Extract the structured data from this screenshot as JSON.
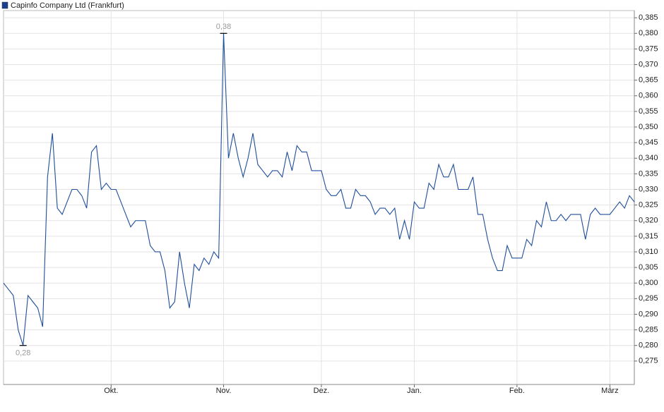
{
  "chart_data": {
    "type": "line",
    "series": [
      {
        "name": "Capinfo Company Ltd (Frankfurt)",
        "color": "#1f4e9a",
        "values": [
          0.3,
          0.298,
          0.296,
          0.285,
          0.28,
          0.296,
          0.294,
          0.292,
          0.286,
          0.334,
          0.348,
          0.324,
          0.322,
          0.326,
          0.33,
          0.33,
          0.328,
          0.324,
          0.342,
          0.344,
          0.33,
          0.332,
          0.33,
          0.33,
          0.326,
          0.322,
          0.318,
          0.32,
          0.32,
          0.32,
          0.312,
          0.31,
          0.31,
          0.304,
          0.292,
          0.294,
          0.31,
          0.3,
          0.292,
          0.306,
          0.304,
          0.308,
          0.306,
          0.31,
          0.308,
          0.38,
          0.34,
          0.348,
          0.34,
          0.334,
          0.34,
          0.348,
          0.338,
          0.336,
          0.334,
          0.336,
          0.336,
          0.334,
          0.342,
          0.336,
          0.344,
          0.342,
          0.342,
          0.336,
          0.336,
          0.336,
          0.33,
          0.328,
          0.328,
          0.33,
          0.324,
          0.324,
          0.33,
          0.328,
          0.328,
          0.326,
          0.322,
          0.324,
          0.324,
          0.322,
          0.324,
          0.314,
          0.32,
          0.314,
          0.326,
          0.324,
          0.324,
          0.332,
          0.33,
          0.338,
          0.334,
          0.334,
          0.338,
          0.33,
          0.33,
          0.33,
          0.334,
          0.322,
          0.322,
          0.314,
          0.308,
          0.304,
          0.304,
          0.312,
          0.308,
          0.308,
          0.308,
          0.314,
          0.312,
          0.32,
          0.318,
          0.326,
          0.32,
          0.32,
          0.322,
          0.32,
          0.322,
          0.322,
          0.322,
          0.314,
          0.322,
          0.324,
          0.322,
          0.322,
          0.322,
          0.324,
          0.326,
          0.324,
          0.328,
          0.326
        ],
        "value_labels": [
          null,
          null,
          null,
          null,
          "0,28",
          null,
          null,
          null,
          null,
          null,
          null,
          null,
          null,
          null,
          null,
          null,
          null,
          null,
          null,
          null,
          null,
          null,
          null,
          null,
          null,
          null,
          null,
          null,
          null,
          null,
          null,
          null,
          null,
          null,
          null,
          null,
          null,
          null,
          null,
          null,
          null,
          null,
          null,
          null,
          null,
          "0,38",
          null,
          null,
          null,
          null,
          null,
          null,
          null,
          null,
          null,
          null,
          null,
          null,
          null,
          null,
          null,
          null,
          null,
          null,
          null,
          null,
          null,
          null,
          null,
          null,
          null,
          null,
          null,
          null,
          null,
          null,
          null,
          null,
          null,
          null,
          null,
          null,
          null,
          null,
          null,
          null,
          null,
          null,
          null,
          null,
          null,
          null,
          null,
          null,
          null,
          null,
          null,
          null,
          null,
          null,
          null,
          null,
          null,
          null,
          null,
          null,
          null,
          null,
          null,
          null,
          null,
          null,
          null,
          null,
          null,
          null,
          null,
          null,
          null,
          null,
          null,
          null,
          null,
          null,
          null,
          null,
          null,
          null,
          null,
          null
        ]
      }
    ],
    "categories": [
      null,
      null,
      null,
      null,
      null,
      null,
      null,
      null,
      null,
      null,
      null,
      null,
      null,
      null,
      null,
      null,
      null,
      null,
      null,
      null,
      null,
      null,
      "Okt.",
      null,
      null,
      null,
      null,
      null,
      null,
      null,
      null,
      null,
      null,
      null,
      null,
      null,
      null,
      null,
      null,
      null,
      null,
      null,
      null,
      null,
      null,
      "Nov.",
      null,
      null,
      null,
      null,
      null,
      null,
      null,
      null,
      null,
      null,
      null,
      null,
      null,
      null,
      null,
      null,
      null,
      null,
      null,
      "Dez.",
      null,
      null,
      null,
      null,
      null,
      null,
      null,
      null,
      null,
      null,
      null,
      null,
      null,
      null,
      null,
      null,
      null,
      null,
      "Jan.",
      null,
      null,
      null,
      null,
      null,
      null,
      null,
      null,
      null,
      null,
      null,
      null,
      null,
      null,
      null,
      null,
      null,
      null,
      null,
      null,
      "Feb.",
      null,
      null,
      null,
      null,
      null,
      null,
      null,
      null,
      null,
      null,
      null,
      null,
      null,
      null,
      null,
      null,
      null,
      null,
      "März",
      null,
      null,
      null,
      null,
      null
    ],
    "ylim": [
      0.2675,
      0.3873
    ],
    "yticks": [
      {
        "value": 0.275,
        "label": "0,275"
      },
      {
        "value": 0.28,
        "label": "0,280"
      },
      {
        "value": 0.285,
        "label": "0,285"
      },
      {
        "value": 0.29,
        "label": "0,290"
      },
      {
        "value": 0.295,
        "label": "0,295"
      },
      {
        "value": 0.3,
        "label": "0,300"
      },
      {
        "value": 0.305,
        "label": "0,305"
      },
      {
        "value": 0.31,
        "label": "0,310"
      },
      {
        "value": 0.315,
        "label": "0,315"
      },
      {
        "value": 0.32,
        "label": "0,320"
      },
      {
        "value": 0.325,
        "label": "0,325"
      },
      {
        "value": 0.33,
        "label": "0,330"
      },
      {
        "value": 0.335,
        "label": "0,335"
      },
      {
        "value": 0.34,
        "label": "0,340"
      },
      {
        "value": 0.345,
        "label": "0,345"
      },
      {
        "value": 0.35,
        "label": "0,350"
      },
      {
        "value": 0.355,
        "label": "0,355"
      },
      {
        "value": 0.36,
        "label": "0,360"
      },
      {
        "value": 0.365,
        "label": "0,365"
      },
      {
        "value": 0.37,
        "label": "0,370"
      },
      {
        "value": 0.375,
        "label": "0,375"
      },
      {
        "value": 0.38,
        "label": "0,380"
      },
      {
        "value": 0.385,
        "label": "0,385"
      }
    ],
    "grid": true
  }
}
